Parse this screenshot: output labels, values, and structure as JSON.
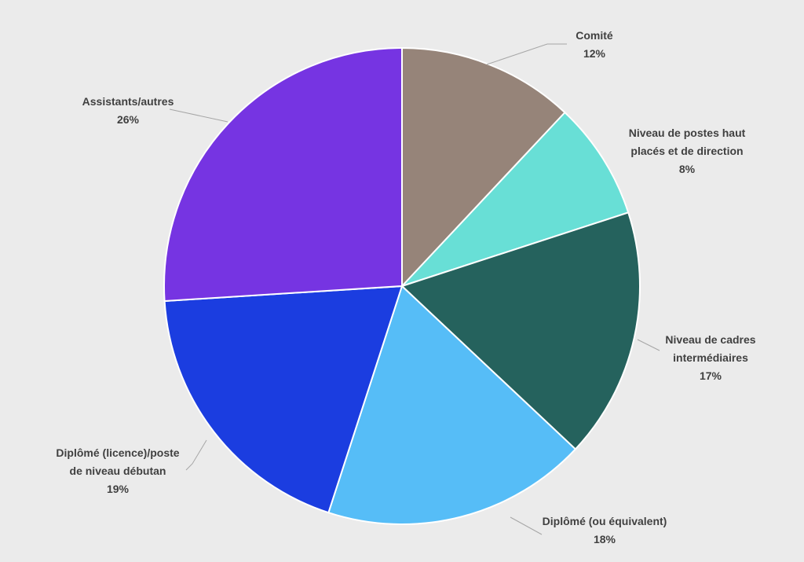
{
  "chart_data": {
    "type": "pie",
    "title": "",
    "slices": [
      {
        "label": "Comité",
        "value": 12,
        "value_label": "12%",
        "color": "#968479"
      },
      {
        "label": "Niveau de postes haut placés et de direction",
        "value": 8,
        "value_label": "8%",
        "color": "#68dfd6"
      },
      {
        "label": "Niveau de cadres intermédiaires",
        "value": 17,
        "value_label": "17%",
        "color": "#25625d"
      },
      {
        "label": "Diplômé (ou équivalent)",
        "value": 18,
        "value_label": "18%",
        "color": "#56bdf7"
      },
      {
        "label": "Diplômé (licence)/poste de niveau débutan",
        "value": 19,
        "value_label": "19%",
        "color": "#1b3de0"
      },
      {
        "label": "Assistants/autres",
        "value": 26,
        "value_label": "26%",
        "color": "#7634e2"
      }
    ],
    "legend": "none",
    "data_labels": "outside-with-leader-lines"
  }
}
